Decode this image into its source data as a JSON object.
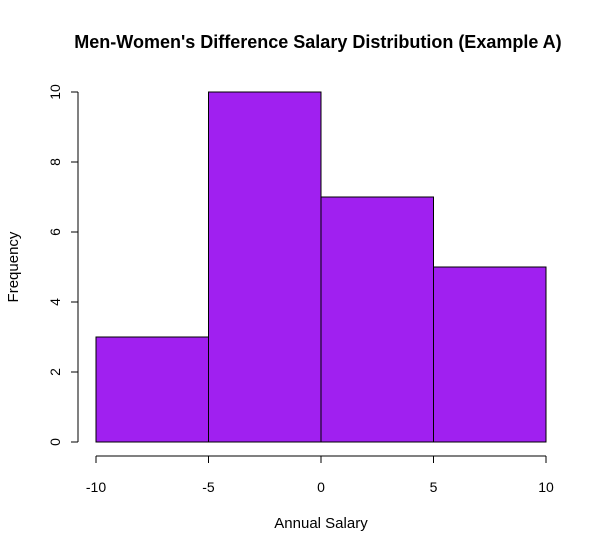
{
  "chart_data": {
    "type": "histogram",
    "title": "Men-Women's Difference Salary Distribution (Example A)",
    "xlabel": "Annual Salary",
    "ylabel": "Frequency",
    "bins": [
      {
        "start": -10,
        "end": -5,
        "count": 3
      },
      {
        "start": -5,
        "end": 0,
        "count": 10
      },
      {
        "start": 0,
        "end": 5,
        "count": 7
      },
      {
        "start": 5,
        "end": 10,
        "count": 5
      }
    ],
    "xlim": [
      -10,
      10
    ],
    "ylim": [
      0,
      10
    ],
    "x_ticks": [
      -10,
      -5,
      0,
      5,
      10
    ],
    "x_tick_labels": [
      "-10",
      "-5",
      "0",
      "5",
      "10"
    ],
    "y_ticks": [
      0,
      2,
      4,
      6,
      8,
      10
    ],
    "y_tick_labels": [
      "0",
      "2",
      "4",
      "6",
      "8",
      "10"
    ],
    "grid": false,
    "bar_color": "#a020f0",
    "bar_border_color": "#000000"
  }
}
